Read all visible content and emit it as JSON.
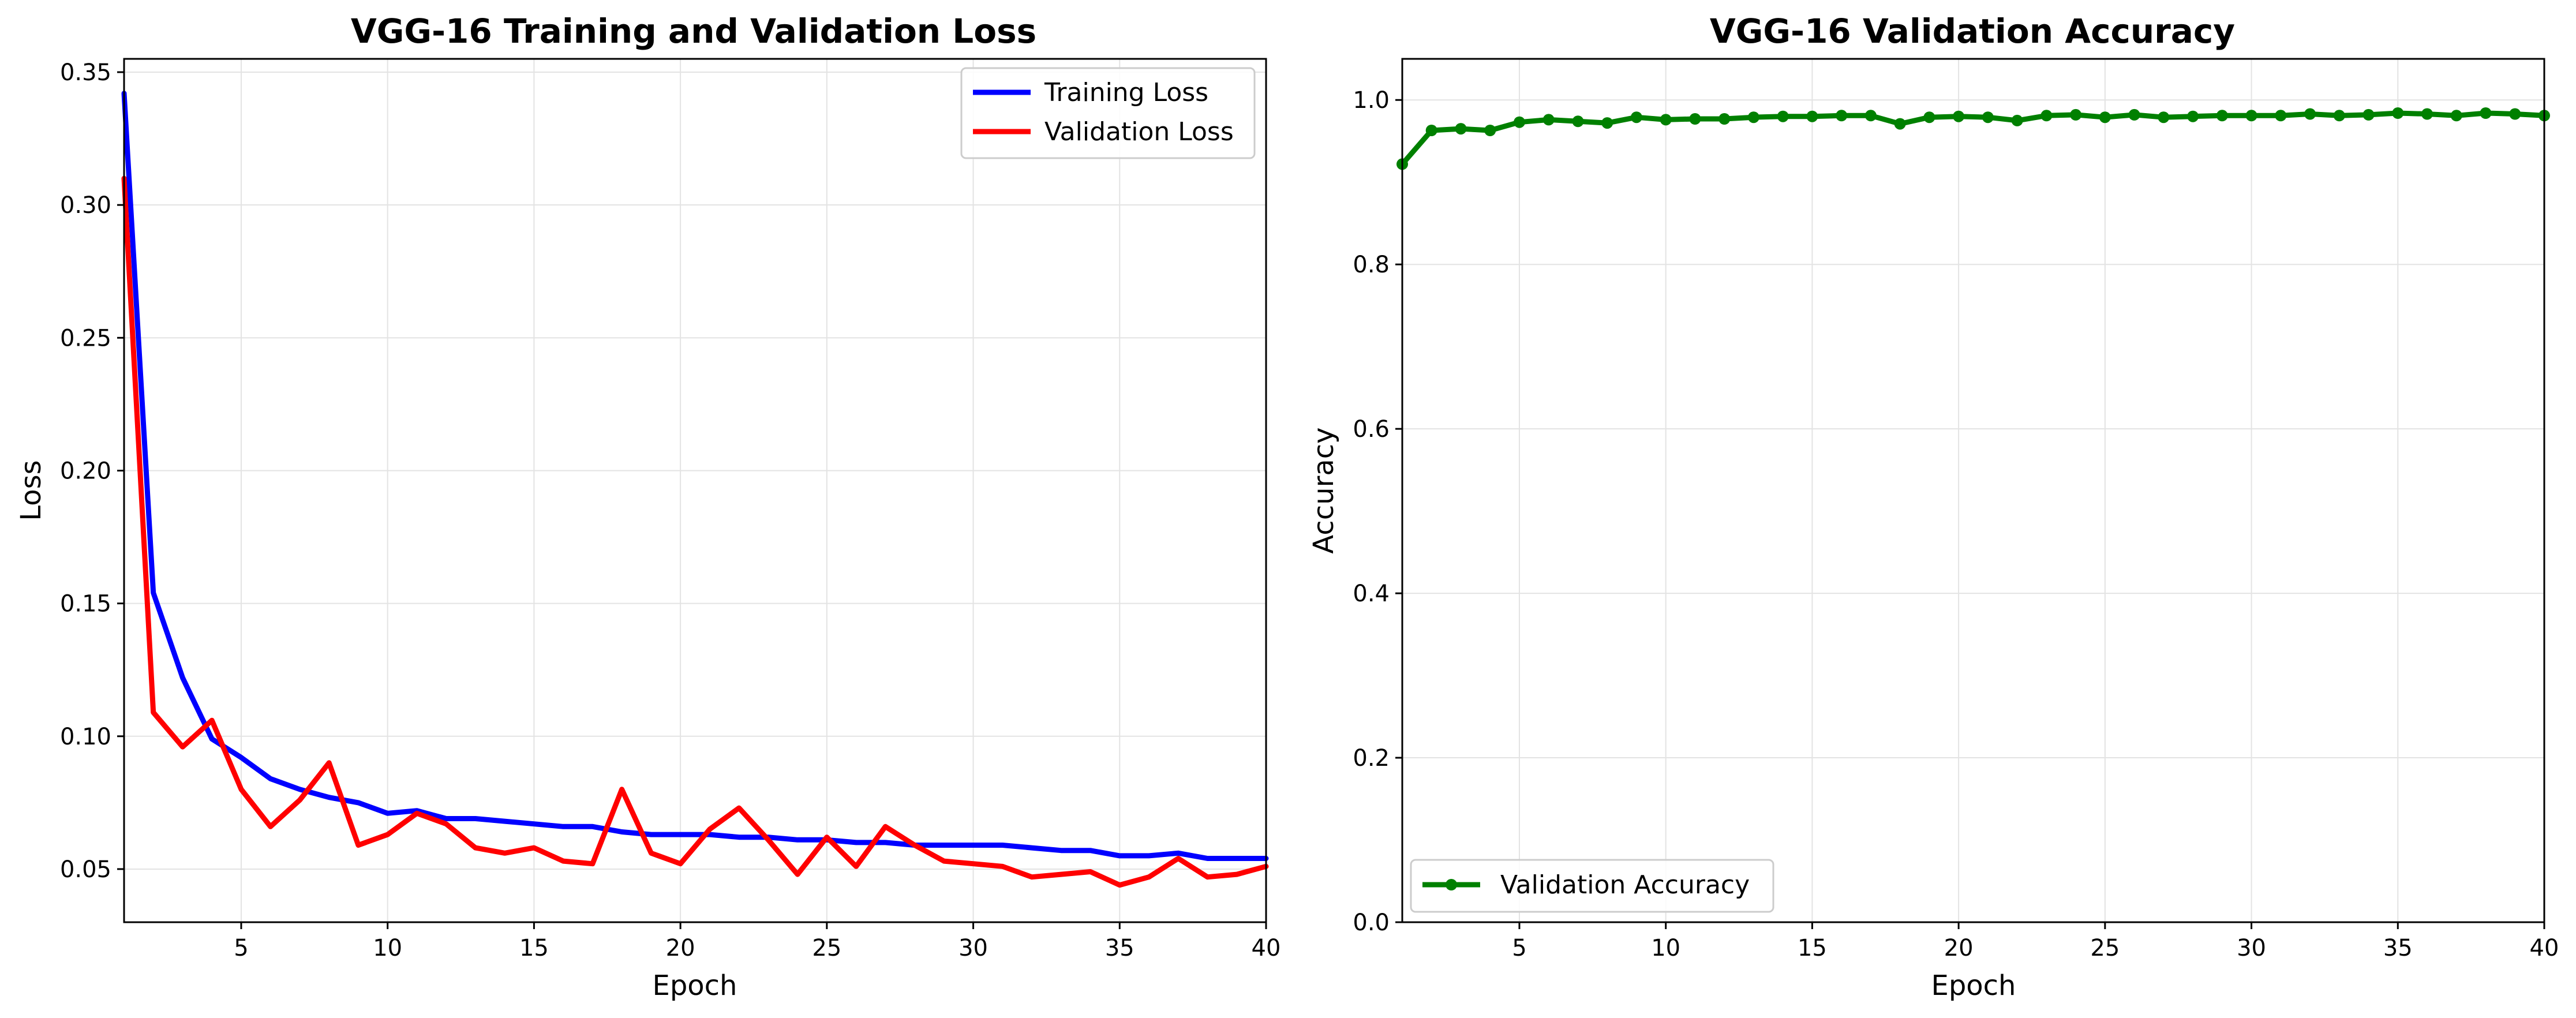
{
  "colors": {
    "training_loss": "#0000ff",
    "validation_loss": "#ff0000",
    "validation_accuracy": "#008000",
    "grid": "#e3e3e3"
  },
  "chart_data": [
    {
      "type": "line",
      "title": "VGG-16 Training and Validation Loss",
      "xlabel": "Epoch",
      "ylabel": "Loss",
      "xlim": [
        1,
        40
      ],
      "ylim": [
        0.03,
        0.355
      ],
      "xticks": [
        5,
        10,
        15,
        20,
        25,
        30,
        35,
        40
      ],
      "yticks": [
        0.05,
        0.1,
        0.15,
        0.2,
        0.25,
        0.3,
        0.35
      ],
      "ytick_labels": [
        "0.05",
        "0.10",
        "0.15",
        "0.20",
        "0.25",
        "0.30",
        "0.35"
      ],
      "grid": true,
      "legend": "top-right",
      "x": [
        1,
        2,
        3,
        4,
        5,
        6,
        7,
        8,
        9,
        10,
        11,
        12,
        13,
        14,
        15,
        16,
        17,
        18,
        19,
        20,
        21,
        22,
        23,
        24,
        25,
        26,
        27,
        28,
        29,
        30,
        31,
        32,
        33,
        34,
        35,
        36,
        37,
        38,
        39,
        40
      ],
      "series": [
        {
          "name": "Training Loss",
          "color": "#0000ff",
          "values": [
            0.342,
            0.154,
            0.122,
            0.099,
            0.092,
            0.084,
            0.08,
            0.077,
            0.075,
            0.071,
            0.072,
            0.069,
            0.069,
            0.068,
            0.067,
            0.066,
            0.066,
            0.064,
            0.063,
            0.063,
            0.063,
            0.062,
            0.062,
            0.061,
            0.061,
            0.06,
            0.06,
            0.059,
            0.059,
            0.059,
            0.059,
            0.058,
            0.057,
            0.057,
            0.055,
            0.055,
            0.056,
            0.054,
            0.054,
            0.054
          ]
        },
        {
          "name": "Validation Loss",
          "color": "#ff0000",
          "values": [
            0.31,
            0.109,
            0.096,
            0.106,
            0.08,
            0.066,
            0.076,
            0.09,
            0.059,
            0.063,
            0.071,
            0.067,
            0.058,
            0.056,
            0.058,
            0.053,
            0.052,
            0.08,
            0.056,
            0.052,
            0.065,
            0.073,
            0.061,
            0.048,
            0.062,
            0.051,
            0.066,
            0.059,
            0.053,
            0.052,
            0.051,
            0.047,
            0.048,
            0.049,
            0.044,
            0.047,
            0.054,
            0.047,
            0.048,
            0.051
          ]
        }
      ]
    },
    {
      "type": "line",
      "title": "VGG-16 Validation Accuracy",
      "xlabel": "Epoch",
      "ylabel": "Accuracy",
      "xlim": [
        1,
        40
      ],
      "ylim": [
        0.0,
        1.05
      ],
      "xticks": [
        5,
        10,
        15,
        20,
        25,
        30,
        35,
        40
      ],
      "yticks": [
        0.0,
        0.2,
        0.4,
        0.6,
        0.8,
        1.0
      ],
      "ytick_labels": [
        "0.0",
        "0.2",
        "0.4",
        "0.6",
        "0.8",
        "1.0"
      ],
      "grid": true,
      "legend": "bottom-left",
      "x": [
        1,
        2,
        3,
        4,
        5,
        6,
        7,
        8,
        9,
        10,
        11,
        12,
        13,
        14,
        15,
        16,
        17,
        18,
        19,
        20,
        21,
        22,
        23,
        24,
        25,
        26,
        27,
        28,
        29,
        30,
        31,
        32,
        33,
        34,
        35,
        36,
        37,
        38,
        39,
        40
      ],
      "series": [
        {
          "name": "Validation Accuracy",
          "color": "#008000",
          "markers": true,
          "values": [
            0.922,
            0.963,
            0.965,
            0.963,
            0.973,
            0.976,
            0.974,
            0.972,
            0.979,
            0.976,
            0.977,
            0.977,
            0.979,
            0.98,
            0.98,
            0.981,
            0.981,
            0.971,
            0.979,
            0.98,
            0.979,
            0.975,
            0.981,
            0.982,
            0.979,
            0.982,
            0.979,
            0.98,
            0.981,
            0.981,
            0.981,
            0.983,
            0.981,
            0.982,
            0.984,
            0.983,
            0.981,
            0.984,
            0.983,
            0.981
          ]
        }
      ]
    }
  ]
}
